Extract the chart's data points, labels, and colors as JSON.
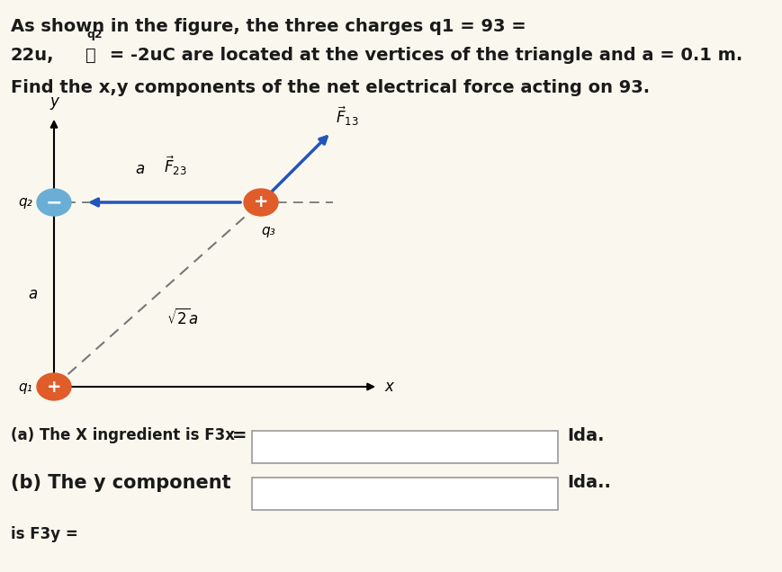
{
  "bg_color": "#FAF8EE",
  "title_line1": "As shown in the figure, the three charges q1 = 93 =",
  "title_line2a": "22u,",
  "title_line2b": " = -2uC are located at the vertices of the triangle and a = 0.1 m.",
  "title_q2_super": "q2",
  "title_line3": "Find the x,y components of the net electrical force acting on 93.",
  "q1_color": "#E05C2A",
  "q2_color": "#6AAED6",
  "q3_color": "#E05C2A",
  "dashed_color": "#777777",
  "arrow_F23_color": "#2255BB",
  "arrow_F13_color": "#2255BB",
  "text_color": "#1A1A1A",
  "part_a_text": "(a) The X ingredient is F3x",
  "part_b_text": "(b) The y component",
  "part_c_text": "is F3y =",
  "answer_label_a": "Ida.",
  "answer_label_b": "Ida..",
  "q1x": 0.13,
  "q1y": 0.09,
  "q2x": 0.13,
  "q2y": 0.58,
  "q3x": 0.5,
  "q3y": 0.58,
  "axis_xend": 0.82,
  "axis_yend": 0.88
}
